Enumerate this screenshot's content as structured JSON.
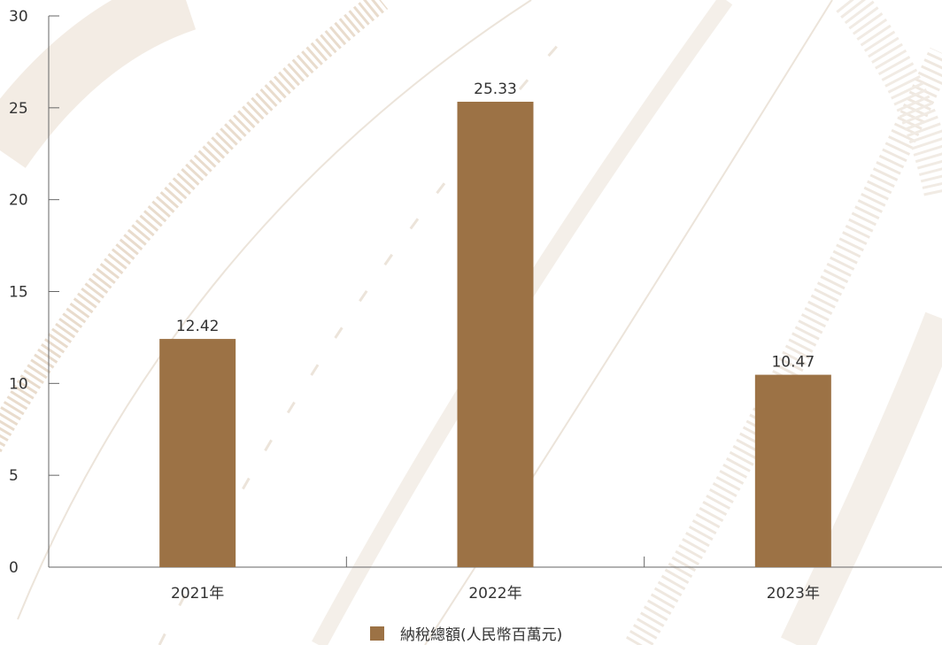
{
  "chart_data": {
    "type": "bar",
    "title": "",
    "xlabel": "",
    "ylabel": "",
    "categories": [
      "2021年",
      "2022年",
      "2023年"
    ],
    "series": [
      {
        "name": "納稅總額(人民幣百萬元)",
        "values": [
          12.42,
          25.33,
          10.47
        ],
        "value_labels": [
          "12.42",
          "25.33",
          "10.47"
        ],
        "color": "#9c7245"
      }
    ],
    "ylim": [
      0,
      30
    ],
    "yticks": [
      0,
      5,
      10,
      15,
      20,
      25,
      30
    ],
    "grid": false,
    "legend": "bottom-center"
  },
  "colors": {
    "bar": "#9c7245",
    "axis": "#666666",
    "background_pattern": "#ece4da"
  }
}
